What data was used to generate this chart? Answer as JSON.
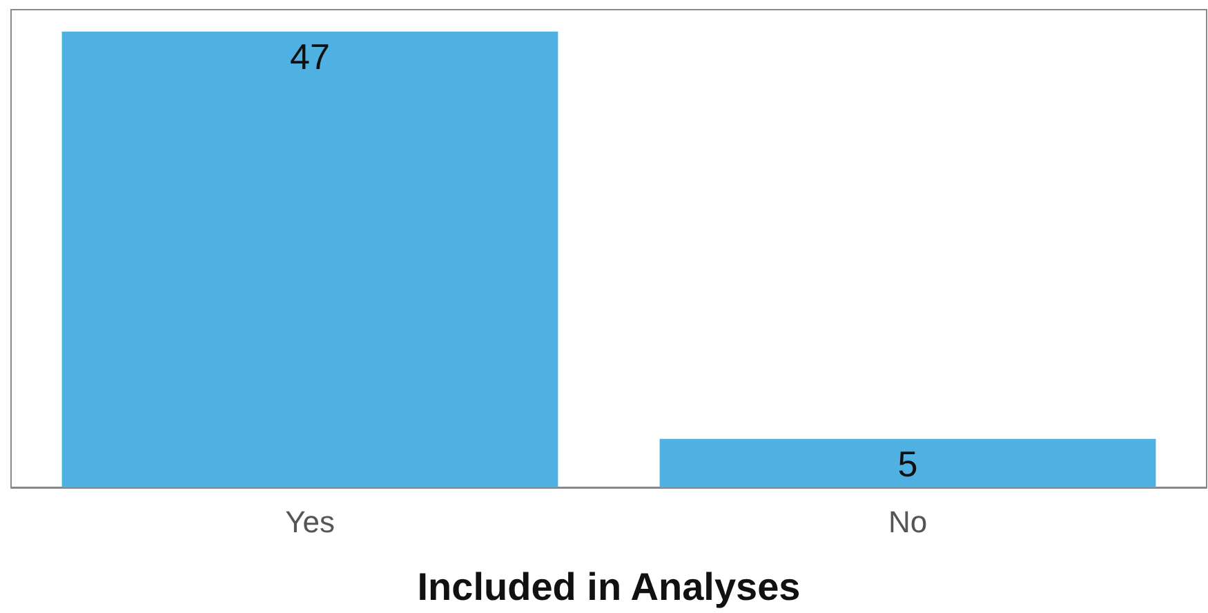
{
  "chart_data": {
    "type": "bar",
    "xlabel": "Included in Analyses",
    "categories": [
      "Yes",
      "No"
    ],
    "values": [
      47,
      5
    ],
    "color": "#4fb0e2",
    "data_labels": true
  }
}
